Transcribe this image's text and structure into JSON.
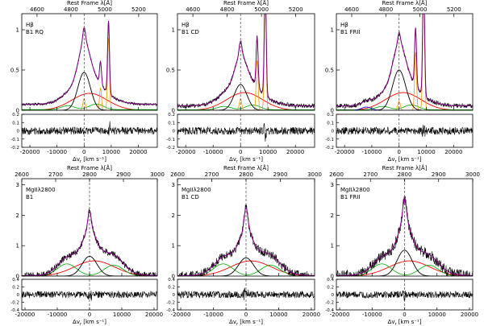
{
  "chart_data": [
    {
      "type": "line",
      "line_label": "Hβ",
      "sample_label": "B1 RQ",
      "top_axis_label": "Rest Frame λ[Å]",
      "top_ticks": [
        "4600",
        "4800",
        "5000",
        "5200"
      ],
      "top_tick_values": [
        4600,
        4800,
        5000,
        5200
      ],
      "top_range": [
        4510,
        5310
      ],
      "xlabel": "Δv",
      "xlabel_sub": "r",
      "xlabel_units": " [km s⁻¹]",
      "x_ticks": [
        "-20000",
        "-10000",
        "0",
        "10000",
        "20000"
      ],
      "x_tick_values": [
        -20000,
        -10000,
        0,
        10000,
        20000
      ],
      "xlim": [
        -23000,
        27000
      ],
      "main_yticks": [
        "0",
        "0.5",
        "1"
      ],
      "main_ytick_values": [
        0,
        0.5,
        1
      ],
      "main_ylim": [
        0,
        1.2
      ],
      "resid_yticks": [
        "-0.2",
        "-0.1",
        "0",
        "0.1",
        "0.2"
      ],
      "resid_ytick_values": [
        -0.2,
        -0.1,
        0,
        0.1,
        0.2
      ],
      "resid_ylim": [
        -0.2,
        0.2
      ],
      "peak": 0.88,
      "bc_amp": 0.47,
      "bc_sigma": 2300,
      "vbc_amp": 0.21,
      "vbc_center": 2000,
      "vbc_sigma": 6500,
      "green_amp": 0.07,
      "green_center": 4500,
      "green_sigma": 2600,
      "o3_4959": 0.28,
      "o3_5007": 0.9,
      "blue_amp": 0,
      "cont": 0.16,
      "noise": 0.012
    },
    {
      "type": "line",
      "line_label": "Hβ",
      "sample_label": "B1 CD",
      "top_axis_label": "Rest Frame λ[Å]",
      "top_ticks": [
        "4600",
        "4800",
        "5000",
        "5200"
      ],
      "top_tick_values": [
        4600,
        4800,
        5000,
        5200
      ],
      "top_range": [
        4510,
        5310
      ],
      "xlabel": "Δv",
      "xlabel_sub": "r",
      "xlabel_units": " [km s⁻¹]",
      "x_ticks": [
        "-20000",
        "-10000",
        "0",
        "10000",
        "20000"
      ],
      "x_tick_values": [
        -20000,
        -10000,
        0,
        10000,
        20000
      ],
      "xlim": [
        -23000,
        27000
      ],
      "main_yticks": [
        "0",
        "0.5",
        "1"
      ],
      "main_ytick_values": [
        0,
        0.5,
        1
      ],
      "main_ylim": [
        0,
        1.2
      ],
      "resid_yticks": [
        "-0.2",
        "-0.1",
        "0",
        "0.1",
        "0.2"
      ],
      "resid_ytick_values": [
        -0.2,
        -0.1,
        0,
        0.1,
        0.2
      ],
      "resid_ylim": [
        -0.2,
        0.2
      ],
      "peak": 0.72,
      "bc_amp": 0.32,
      "bc_sigma": 2300,
      "vbc_amp": 0.22,
      "vbc_center": 1500,
      "vbc_sigma": 6500,
      "green_amp": 0.06,
      "green_center": 4500,
      "green_sigma": 2600,
      "o3_4959": 0.62,
      "o3_5007": 1.4,
      "blue_amp": 0,
      "cont": 0.12,
      "noise": 0.02
    },
    {
      "type": "line",
      "line_label": "Hβ",
      "sample_label": "B1 FRII",
      "top_axis_label": "Rest Frame λ[Å]",
      "top_ticks": [
        "4600",
        "4800",
        "5000",
        "5200"
      ],
      "top_tick_values": [
        4600,
        4800,
        5000,
        5200
      ],
      "top_range": [
        4510,
        5310
      ],
      "xlabel": "Δv",
      "xlabel_sub": "r",
      "xlabel_units": " [km s⁻¹]",
      "x_ticks": [
        "-20000",
        "-10000",
        "0",
        "10000",
        "20000"
      ],
      "x_tick_values": [
        -20000,
        -10000,
        0,
        10000,
        20000
      ],
      "xlim": [
        -23000,
        27000
      ],
      "main_yticks": [
        "0",
        "0.5",
        "1"
      ],
      "main_ytick_values": [
        0,
        0.5,
        1
      ],
      "main_ylim": [
        0,
        1.2
      ],
      "resid_yticks": [
        "-0.2",
        "-0.1",
        "0",
        "0.1",
        "0.2"
      ],
      "resid_ytick_values": [
        -0.2,
        -0.1,
        0,
        0.1,
        0.2
      ],
      "resid_ylim": [
        -0.2,
        0.2
      ],
      "peak": 0.82,
      "bc_amp": 0.5,
      "bc_sigma": 2400,
      "vbc_amp": 0.22,
      "vbc_center": 1500,
      "vbc_sigma": 6500,
      "green_amp": 0.06,
      "green_center": 4500,
      "green_sigma": 2600,
      "o3_4959": 0.72,
      "o3_5007": 1.5,
      "blue_amp": 0.04,
      "cont": 0.12,
      "noise": 0.02
    },
    {
      "type": "line",
      "line_label": "MgIIλ2800",
      "sample_label": "B1",
      "top_axis_label": "Rest Frame λ[Å]",
      "top_ticks": [
        "2600",
        "2700",
        "2800",
        "2900",
        "3000"
      ],
      "top_tick_values": [
        2600,
        2700,
        2800,
        2900,
        3000
      ],
      "top_range": [
        2600,
        3000
      ],
      "xlabel": "Δv",
      "xlabel_sub": "r",
      "xlabel_units": " [km s⁻¹]",
      "x_ticks": [
        "-20000",
        "-10000",
        "0",
        "10000",
        "20000"
      ],
      "x_tick_values": [
        -20000,
        -10000,
        0,
        10000,
        20000
      ],
      "xlim": [
        -21000,
        21000
      ],
      "main_yticks": [
        "0",
        "1",
        "2",
        "3"
      ],
      "main_ytick_values": [
        0,
        1,
        2,
        3
      ],
      "main_ylim": [
        0,
        3.2
      ],
      "resid_yticks": [
        "-0.4",
        "-0.2",
        "0",
        "0.2",
        "0.4"
      ],
      "resid_ytick_values": [
        -0.4,
        -0.2,
        0,
        0.2,
        0.4
      ],
      "resid_ylim": [
        -0.4,
        0.4
      ],
      "peak": 1.95,
      "bc_amp": 0.65,
      "bc_sigma": 2300,
      "vbc_amp": 0.5,
      "vbc_center": 1500,
      "vbc_sigma": 6200,
      "green_amp": 0.4,
      "green_center": -7000,
      "green_sigma": 3000,
      "green2_center": 7500,
      "cont": 0.2,
      "noise": 0.03
    },
    {
      "type": "line",
      "line_label": "MgIIλ2800",
      "sample_label": "B1 CD",
      "top_axis_label": "Rest Frame λ[Å]",
      "top_ticks": [
        "2600",
        "2700",
        "2800",
        "2900",
        "3000"
      ],
      "top_tick_values": [
        2600,
        2700,
        2800,
        2900,
        3000
      ],
      "top_range": [
        2600,
        3000
      ],
      "xlabel": "Δv",
      "xlabel_sub": "r",
      "xlabel_units": " [km s⁻¹]",
      "x_ticks": [
        "-20000",
        "-10000",
        "0",
        "10000",
        "20000"
      ],
      "x_tick_values": [
        -20000,
        -10000,
        0,
        10000,
        20000
      ],
      "xlim": [
        -21000,
        21000
      ],
      "main_yticks": [
        "0",
        "1",
        "2",
        "3"
      ],
      "main_ytick_values": [
        0,
        1,
        2,
        3
      ],
      "main_ylim": [
        0,
        3.2
      ],
      "resid_yticks": [
        "-0.4",
        "-0.2",
        "0",
        "0.2",
        "0.4"
      ],
      "resid_ytick_values": [
        -0.4,
        -0.2,
        0,
        0.2,
        0.4
      ],
      "resid_ylim": [
        -0.4,
        0.4
      ],
      "peak": 2.05,
      "bc_amp": 0.6,
      "bc_sigma": 2300,
      "vbc_amp": 0.5,
      "vbc_center": 1500,
      "vbc_sigma": 6200,
      "green_amp": 0.4,
      "green_center": -7000,
      "green_sigma": 3000,
      "green2_center": 7500,
      "cont": 0.2,
      "noise": 0.04
    },
    {
      "type": "line",
      "line_label": "MgIIλ2800",
      "sample_label": "B1 FRII",
      "top_axis_label": "Rest Frame λ[Å]",
      "top_ticks": [
        "2600",
        "2700",
        "2800",
        "2900",
        "3000"
      ],
      "top_tick_values": [
        2600,
        2700,
        2800,
        2900,
        3000
      ],
      "top_range": [
        2600,
        3000
      ],
      "xlabel": "Δv",
      "xlabel_sub": "r",
      "xlabel_units": " [km s⁻¹]",
      "x_ticks": [
        "-20000",
        "-10000",
        "0",
        "10000",
        "20000"
      ],
      "x_tick_values": [
        -20000,
        -10000,
        0,
        10000,
        20000
      ],
      "xlim": [
        -21000,
        21000
      ],
      "main_yticks": [
        "0",
        "1",
        "2",
        "3"
      ],
      "main_ytick_values": [
        0,
        1,
        2,
        3
      ],
      "main_ylim": [
        0,
        3.2
      ],
      "resid_yticks": [
        "-0.4",
        "-0.2",
        "0",
        "0.2",
        "0.4"
      ],
      "resid_ytick_values": [
        -0.4,
        -0.2,
        0,
        0.2,
        0.4
      ],
      "resid_ylim": [
        -0.4,
        0.4
      ],
      "peak": 2.35,
      "bc_amp": 0.85,
      "bc_sigma": 2300,
      "vbc_amp": 0.5,
      "vbc_center": 1500,
      "vbc_sigma": 6200,
      "green_amp": 0.4,
      "green_center": -7000,
      "green_sigma": 3000,
      "green2_center": 7500,
      "cont": 0.25,
      "noise": 0.05
    }
  ],
  "colors": {
    "axis": "#000000",
    "data": "#000000",
    "total_fit": "#800080",
    "broad_component": "#000000",
    "very_broad_component": "#ff0000",
    "feii": "#00aa00",
    "narrow_lines": "#ff9900",
    "blue_component": "#0000ff",
    "zero_line": "#555555",
    "line_marker": "#444444"
  }
}
